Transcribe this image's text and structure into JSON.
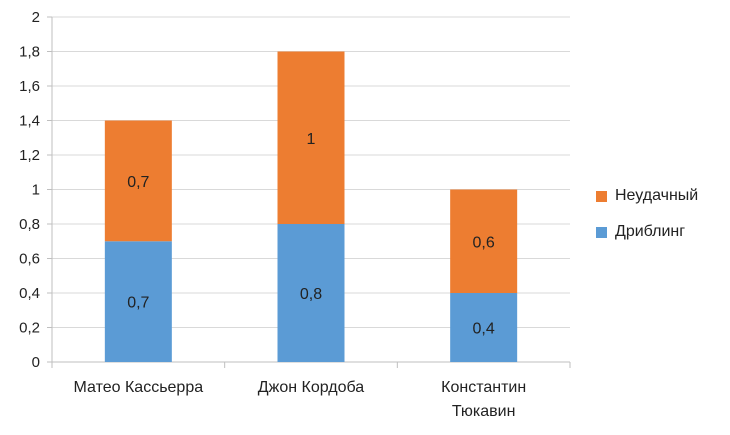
{
  "chart_data": {
    "type": "bar",
    "stacked": true,
    "categories": [
      [
        "Матео Кассьерра"
      ],
      [
        "Джон Кордоба"
      ],
      [
        "Константин",
        "Тюкавин"
      ]
    ],
    "series": [
      {
        "name": "Дриблинг",
        "color": "#5B9BD5",
        "values": [
          0.7,
          0.8,
          0.4
        ],
        "labels": [
          "0,7",
          "0,8",
          "0,4"
        ]
      },
      {
        "name": "Неудачный",
        "color": "#ED7D31",
        "values": [
          0.7,
          1.0,
          0.6
        ],
        "labels": [
          "0,7",
          "1",
          "0,6"
        ]
      }
    ],
    "y_ticks": [
      0,
      0.2,
      0.4,
      0.6,
      0.8,
      1,
      1.2,
      1.4,
      1.6,
      1.8,
      2
    ],
    "y_tick_labels": [
      "0",
      "0,2",
      "0,4",
      "0,6",
      "0,8",
      "1",
      "1,2",
      "1,4",
      "1,6",
      "1,8",
      "2"
    ],
    "ylim": [
      0,
      2
    ],
    "grid": true,
    "legend_position": "right"
  },
  "legend": {
    "items": [
      {
        "label": "Неудачный",
        "color": "#ED7D31"
      },
      {
        "label": "Дриблинг",
        "color": "#5B9BD5"
      }
    ]
  },
  "colors": {
    "gridline": "#d9d9d9",
    "axis": "#bfbfbf",
    "text": "#222222"
  }
}
